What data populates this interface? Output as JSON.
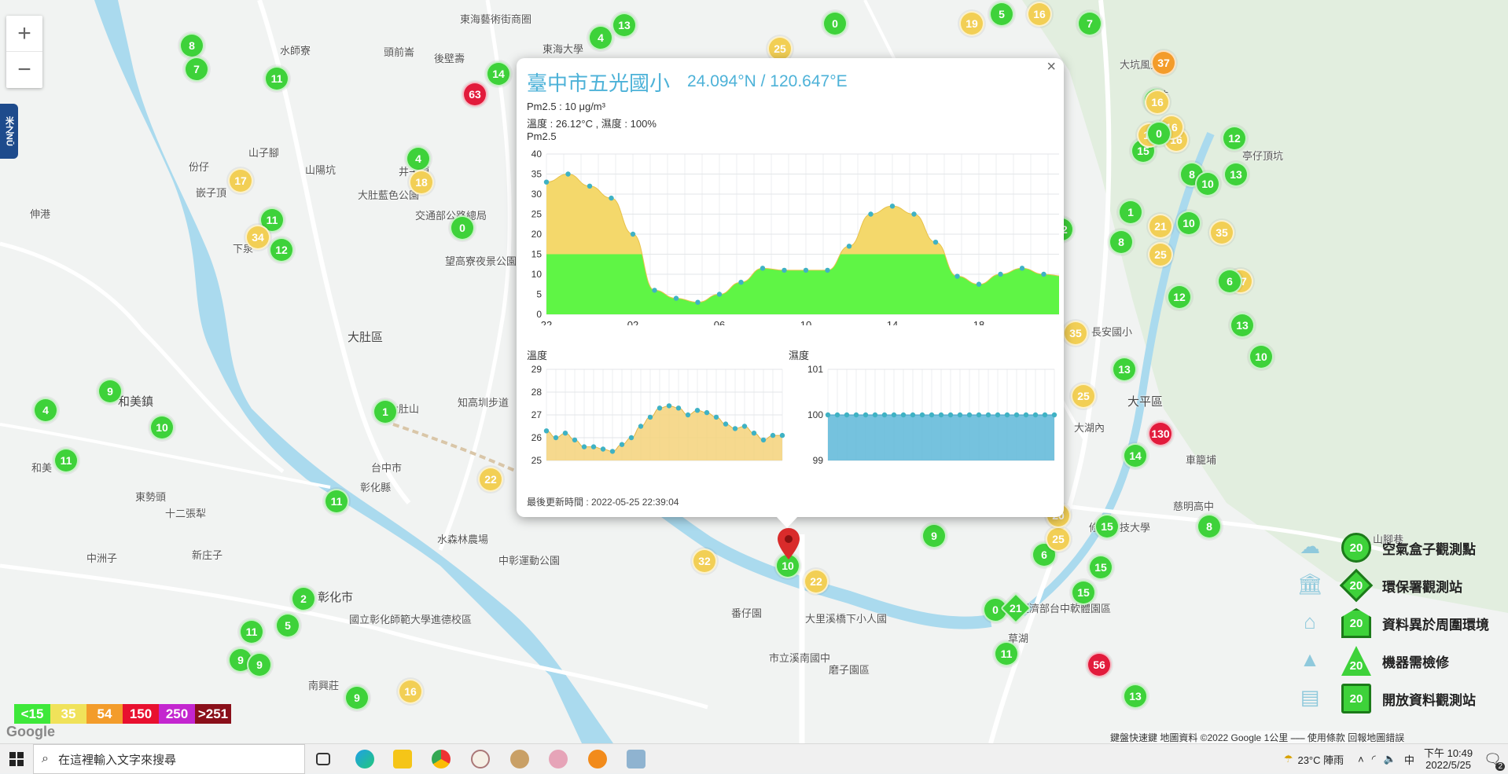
{
  "map": {
    "places": [
      {
        "t": "東海藝術街商圈"
      },
      {
        "t": "水師寮"
      },
      {
        "t": "頭前崙"
      },
      {
        "t": "後壁壽"
      },
      {
        "t": "東海大學"
      },
      {
        "t": "山子腳"
      },
      {
        "t": "山陽坑"
      },
      {
        "t": "份仔"
      },
      {
        "t": "伸港"
      },
      {
        "t": "大肚藍色公園"
      },
      {
        "t": "交通部公路總局"
      },
      {
        "t": "望高寮夜景公園"
      },
      {
        "t": "大肚區"
      },
      {
        "t": "和美鎮"
      },
      {
        "t": "和美"
      },
      {
        "t": "東勢頭"
      },
      {
        "t": "十二張犁"
      },
      {
        "t": "中洲子"
      },
      {
        "t": "新庄子"
      },
      {
        "t": "彰化市"
      },
      {
        "t": "國立彰化師範大學進德校區"
      },
      {
        "t": "南興莊"
      },
      {
        "t": "水森林農場"
      },
      {
        "t": "中彰運動公園"
      },
      {
        "t": "番仔園"
      },
      {
        "t": "大里溪橋下小人國"
      },
      {
        "t": "磨子園區"
      },
      {
        "t": "市立溪南國中"
      },
      {
        "t": "大平區"
      },
      {
        "t": "長安國小"
      },
      {
        "t": "修平科技大學"
      },
      {
        "t": "大坑風景區"
      },
      {
        "t": "大坑"
      },
      {
        "t": "亭仔頂坑"
      },
      {
        "t": "車籠埔"
      },
      {
        "t": "慈明高中"
      },
      {
        "t": "山腳巷"
      },
      {
        "t": "草湖"
      },
      {
        "t": "經濟部台中軟體園區"
      },
      {
        "t": "知高圳步道"
      },
      {
        "t": "大湖內"
      },
      {
        "t": "台中市"
      },
      {
        "t": "彰化縣"
      },
      {
        "t": "嵌子頂"
      },
      {
        "t": "大肚山"
      },
      {
        "t": "井子頭"
      },
      {
        "t": "下泉"
      }
    ],
    "markers": [
      {
        "v": "8",
        "c": "g"
      },
      {
        "v": "7",
        "c": "g"
      },
      {
        "v": "11",
        "c": "g"
      },
      {
        "v": "13",
        "c": "g"
      },
      {
        "v": "4",
        "c": "g"
      },
      {
        "v": "14",
        "c": "g"
      },
      {
        "v": "63",
        "c": "r"
      },
      {
        "v": "0",
        "c": "g"
      },
      {
        "v": "25",
        "c": "y"
      },
      {
        "v": "19",
        "c": "y"
      },
      {
        "v": "5",
        "c": "g"
      },
      {
        "v": "16",
        "c": "y"
      },
      {
        "v": "7",
        "c": "g"
      },
      {
        "v": "37",
        "c": "o"
      },
      {
        "v": "17",
        "c": "y"
      },
      {
        "v": "4",
        "c": "g"
      },
      {
        "v": "18",
        "c": "y"
      },
      {
        "v": "11",
        "c": "g"
      },
      {
        "v": "34",
        "c": "y"
      },
      {
        "v": "12",
        "c": "g"
      },
      {
        "v": "0",
        "c": "g"
      },
      {
        "v": "9",
        "c": "g"
      },
      {
        "v": "4",
        "c": "g"
      },
      {
        "v": "10",
        "c": "g"
      },
      {
        "v": "11",
        "c": "g"
      },
      {
        "v": "1",
        "c": "g"
      },
      {
        "v": "11",
        "c": "g"
      },
      {
        "v": "22",
        "c": "y"
      },
      {
        "v": "2",
        "c": "g"
      },
      {
        "v": "11",
        "c": "g"
      },
      {
        "v": "5",
        "c": "g"
      },
      {
        "v": "9",
        "c": "g"
      },
      {
        "v": "9",
        "c": "g"
      },
      {
        "v": "9",
        "c": "g"
      },
      {
        "v": "16",
        "c": "y"
      },
      {
        "v": "32",
        "c": "y"
      },
      {
        "v": "10",
        "c": "g"
      },
      {
        "v": "22",
        "c": "y"
      },
      {
        "v": "9",
        "c": "g"
      },
      {
        "v": "0",
        "c": "g"
      },
      {
        "v": "21",
        "c": "y"
      },
      {
        "v": "11",
        "c": "g"
      },
      {
        "v": "56",
        "c": "r"
      },
      {
        "v": "13",
        "c": "g"
      },
      {
        "v": "15",
        "c": "g"
      },
      {
        "v": "6",
        "c": "g"
      },
      {
        "v": "25",
        "c": "y"
      },
      {
        "v": "20",
        "c": "y"
      },
      {
        "v": "15",
        "c": "g"
      },
      {
        "v": "15",
        "c": "g"
      },
      {
        "v": "8",
        "c": "g"
      },
      {
        "v": "130",
        "c": "r"
      },
      {
        "v": "14",
        "c": "g"
      },
      {
        "v": "25",
        "c": "y"
      },
      {
        "v": "13",
        "c": "g"
      },
      {
        "v": "35",
        "c": "y"
      },
      {
        "v": "13",
        "c": "g"
      },
      {
        "v": "10",
        "c": "g"
      },
      {
        "v": "12",
        "c": "g"
      },
      {
        "v": "27",
        "c": "y"
      },
      {
        "v": "6",
        "c": "g"
      },
      {
        "v": "35",
        "c": "y"
      },
      {
        "v": "21",
        "c": "y"
      },
      {
        "v": "25",
        "c": "y"
      },
      {
        "v": "10",
        "c": "g"
      },
      {
        "v": "8",
        "c": "g"
      },
      {
        "v": "1",
        "c": "g"
      },
      {
        "v": "12",
        "c": "g"
      },
      {
        "v": "16",
        "c": "y"
      },
      {
        "v": "16",
        "c": "y"
      },
      {
        "v": "8",
        "c": "g"
      },
      {
        "v": "10",
        "c": "g"
      },
      {
        "v": "15",
        "c": "g"
      },
      {
        "v": "16",
        "c": "y"
      },
      {
        "v": "0",
        "c": "g"
      },
      {
        "v": "5",
        "c": "g"
      },
      {
        "v": "16",
        "c": "y"
      },
      {
        "v": "13",
        "c": "g"
      },
      {
        "v": "12",
        "c": "g"
      }
    ]
  },
  "zoom": {
    "in": "+",
    "out": "−"
  },
  "sidetab": "米之NŪ",
  "popup": {
    "close": "×",
    "title": "臺中市五光國小",
    "coord": "24.094°N / 120.647°E",
    "pm_line": "Pm2.5 : 10 μg/m³",
    "env_line": "溫度 : 26.12°C , 濕度 : 100%",
    "pm_label": "Pm2.5",
    "temp_label": "溫度",
    "hum_label": "濕度",
    "updated": "最後更新時間 : 2022-05-25 22:39:04"
  },
  "chart_data": [
    {
      "type": "area",
      "title": "Pm2.5",
      "x": [
        "22",
        "23",
        "00",
        "01",
        "02",
        "03",
        "04",
        "05",
        "06",
        "07",
        "08",
        "09",
        "10",
        "11",
        "12",
        "13",
        "14",
        "15",
        "16",
        "17",
        "18",
        "19",
        "20",
        "21",
        "22"
      ],
      "xticks": [
        "22",
        "02",
        "06",
        "10",
        "14",
        "18",
        "22"
      ],
      "values": [
        33,
        35,
        32,
        29,
        20,
        6,
        4,
        3,
        5,
        8,
        11.5,
        11,
        11,
        11,
        17,
        25,
        27,
        25,
        18,
        9.5,
        7.5,
        10,
        11.5,
        10,
        9.5
      ],
      "ylim": [
        0,
        40
      ],
      "yticks": [
        0,
        5,
        10,
        15,
        20,
        25,
        30,
        35,
        40
      ],
      "threshold": 15,
      "colors": {
        "low": "#5ff545",
        "high": "#f4d86b",
        "point": "#3fb2c4"
      }
    },
    {
      "type": "area",
      "title": "溫度",
      "values": [
        26.3,
        26,
        26.2,
        25.9,
        25.6,
        25.6,
        25.5,
        25.4,
        25.7,
        26,
        26.5,
        26.9,
        27.3,
        27.4,
        27.3,
        27,
        27.2,
        27.1,
        26.9,
        26.6,
        26.4,
        26.5,
        26.2,
        25.9,
        26.1,
        26.1
      ],
      "ylim": [
        25,
        29
      ],
      "yticks": [
        25,
        26,
        27,
        28,
        29
      ],
      "colors": {
        "fill": "#f4d27a",
        "point": "#3fb2c4"
      }
    },
    {
      "type": "area",
      "title": "濕度",
      "values": [
        100,
        100,
        100,
        100,
        100,
        100,
        100,
        100,
        100,
        100,
        100,
        100,
        100,
        100,
        100,
        100,
        100,
        100,
        100,
        100,
        100,
        100,
        100,
        100,
        100
      ],
      "ylim": [
        99,
        101
      ],
      "yticks": [
        99,
        100,
        101
      ],
      "colors": {
        "fill": "#5db7d8",
        "point": "#3fb2c4"
      }
    }
  ],
  "legend": [
    {
      "label": "空氣盒子觀測點",
      "sym": "20",
      "icon": "cloud-box-icon"
    },
    {
      "label": "環保署觀測站",
      "sym": "20",
      "icon": "government-building-icon"
    },
    {
      "label": "資料異於周圍環境",
      "sym": "20",
      "icon": "house-icon"
    },
    {
      "label": "機器需檢修",
      "sym": "20",
      "icon": "cone-icon"
    },
    {
      "label": "開放資料觀測站",
      "sym": "20",
      "icon": "open-data-icon"
    }
  ],
  "scale": [
    {
      "t": "<15",
      "c": "#3ee83a"
    },
    {
      "t": "35",
      "c": "#f0e25a"
    },
    {
      "t": "54",
      "c": "#f39c2b"
    },
    {
      "t": "150",
      "c": "#e8102f"
    },
    {
      "t": "250",
      "c": "#c326cf"
    },
    {
      "t": ">251",
      "c": "#8a0f1a"
    }
  ],
  "google": "Google",
  "attribution": "鍵盤快速鍵   地圖資料 ©2022 Google   1公里 ⎯⎯⎯   使用條款   回報地圖錯誤",
  "taskbar": {
    "search_placeholder": "在這裡輸入文字來搜尋",
    "weather": "23°C 陣雨",
    "ime": "中",
    "time": "下午 10:49",
    "date": "2022/5/25",
    "notify_count": "2"
  }
}
